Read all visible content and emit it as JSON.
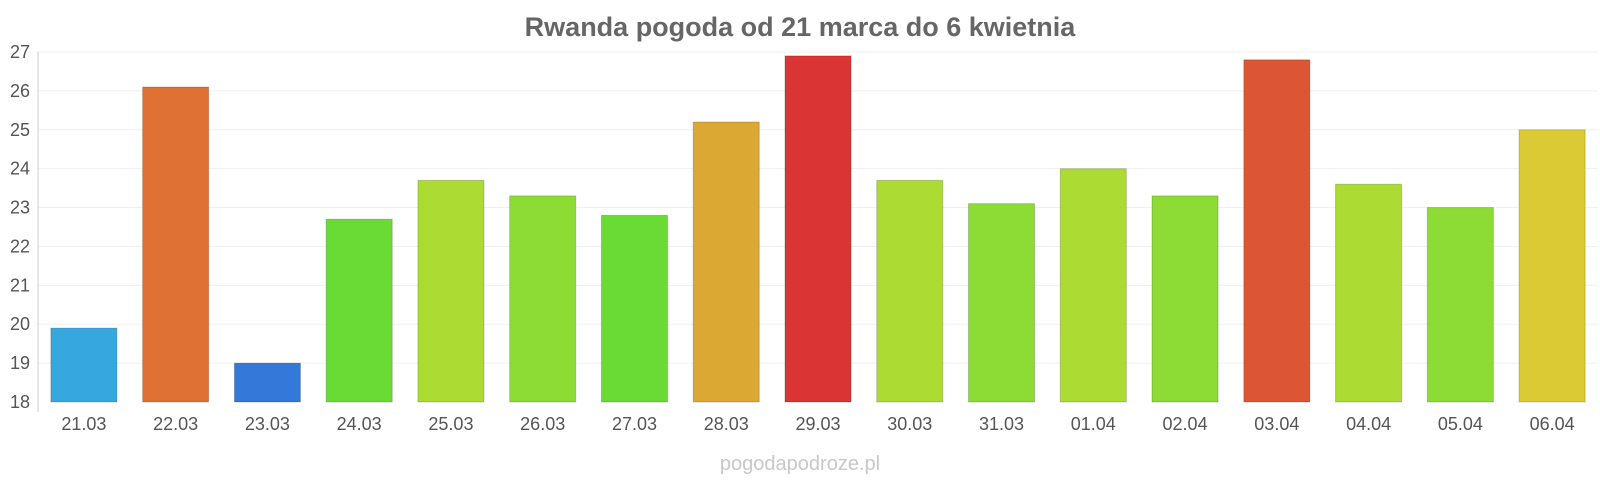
{
  "watermark": "pogodapodroze.pl",
  "chart_data": {
    "type": "bar",
    "title": "Rwanda pogoda od 21 marca do 6 kwietnia",
    "xlabel": "",
    "ylabel": "",
    "ylim": [
      18,
      27
    ],
    "yticks": [
      18,
      19,
      20,
      21,
      22,
      23,
      24,
      25,
      26,
      27
    ],
    "grid": true,
    "legend": "none",
    "categories": [
      "21.03",
      "22.03",
      "23.03",
      "24.03",
      "25.03",
      "26.03",
      "27.03",
      "28.03",
      "29.03",
      "30.03",
      "31.03",
      "01.04",
      "02.04",
      "03.04",
      "04.04",
      "05.04",
      "06.04"
    ],
    "values": [
      19.9,
      26.1,
      19.0,
      22.7,
      23.7,
      23.3,
      22.8,
      25.2,
      26.9,
      23.7,
      23.1,
      24.0,
      23.3,
      26.8,
      23.6,
      23.0,
      25.0
    ],
    "colors": [
      "#36a7df",
      "#df7135",
      "#3478d9",
      "#6adb35",
      "#acdb34",
      "#8cdc35",
      "#6adb35",
      "#dba834",
      "#db3434",
      "#acdb34",
      "#8cdc35",
      "#acdb34",
      "#8cdc35",
      "#dc5534",
      "#acdb34",
      "#8cdc35",
      "#dbca34"
    ]
  }
}
